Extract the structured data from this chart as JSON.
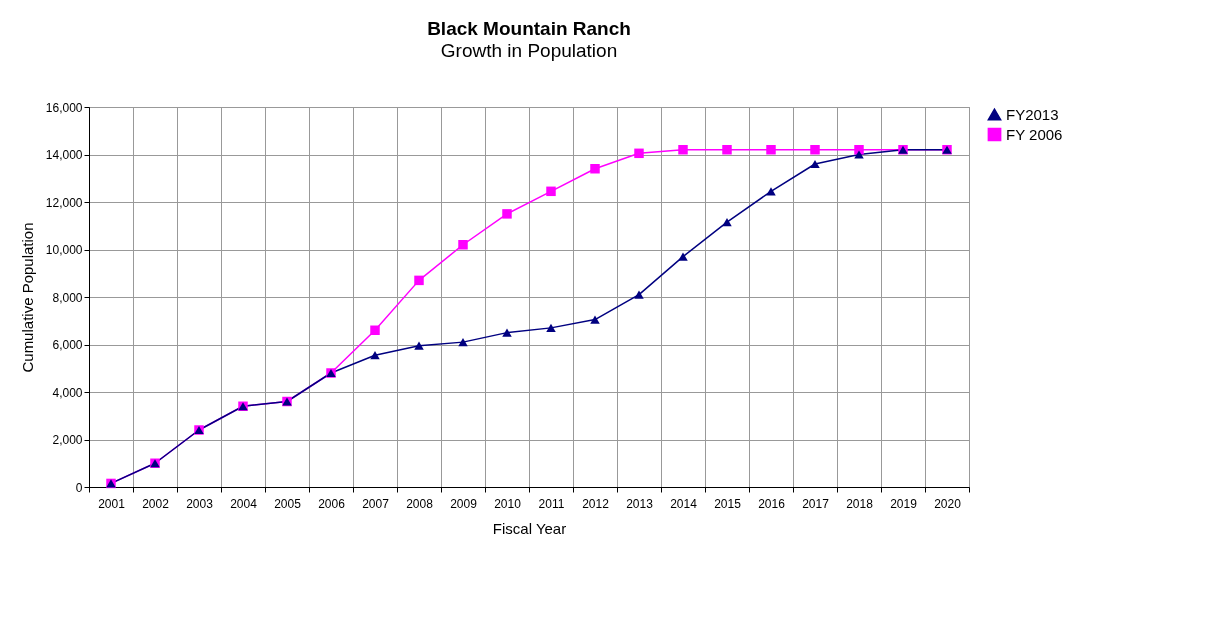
{
  "chart_data": {
    "type": "line",
    "title": "Black Mountain Ranch",
    "subtitle": "Growth in Population",
    "xlabel": "Fiscal Year",
    "ylabel": "Cumulative Population",
    "categories": [
      "2001",
      "2002",
      "2003",
      "2004",
      "2005",
      "2006",
      "2007",
      "2008",
      "2009",
      "2010",
      "2011",
      "2012",
      "2013",
      "2014",
      "2015",
      "2016",
      "2017",
      "2018",
      "2019",
      "2020"
    ],
    "series": [
      {
        "name": "FY2013",
        "color": "#000080",
        "marker": "triangle",
        "values": [
          150,
          1000,
          2400,
          3400,
          3600,
          4800,
          5550,
          5950,
          6100,
          6500,
          6700,
          7050,
          8100,
          9700,
          11150,
          12450,
          13600,
          14000,
          14200,
          14200
        ]
      },
      {
        "name": "FY 2006",
        "color": "#ff00ff",
        "marker": "square",
        "values": [
          150,
          1000,
          2400,
          3400,
          3600,
          4800,
          6600,
          8700,
          10200,
          11500,
          12450,
          13400,
          14050,
          14200,
          14200,
          14200,
          14200,
          14200,
          14200,
          14200
        ]
      }
    ],
    "ylim": [
      0,
      16000
    ],
    "yticks": [
      0,
      {
        "value": 2000,
        "label": "2,000"
      },
      {
        "value": 4000,
        "label": "4,000"
      },
      {
        "value": 6000,
        "label": "6,000"
      },
      {
        "value": 8000,
        "label": "8,000"
      },
      {
        "value": 10000,
        "label": "10,000"
      },
      {
        "value": 12000,
        "label": "12,000"
      },
      {
        "value": 14000,
        "label": "14,000"
      },
      {
        "value": 16000,
        "label": "16,000"
      }
    ],
    "grid": true,
    "legend": "right",
    "line_style": "solid"
  }
}
